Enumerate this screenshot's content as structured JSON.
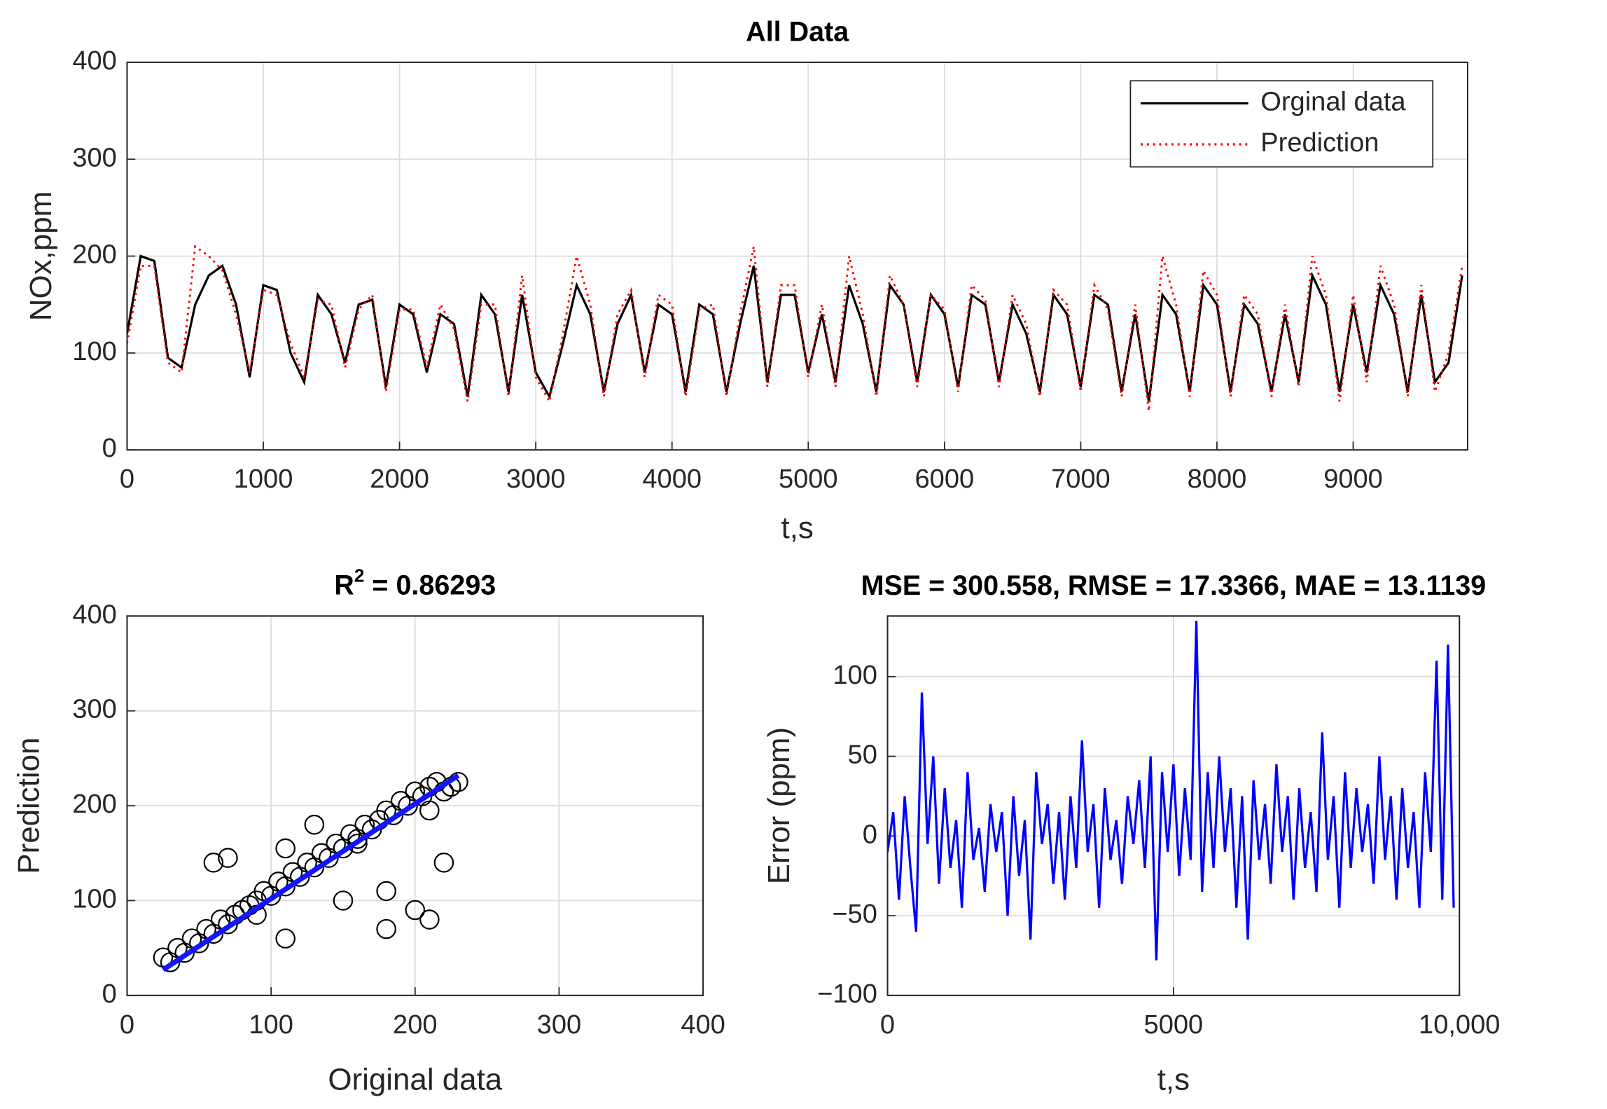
{
  "chart_data": [
    {
      "type": "line",
      "title": "All Data",
      "xlabel": "t,s",
      "ylabel": "NOx,ppm",
      "xlim": [
        0,
        9840
      ],
      "ylim": [
        0,
        400
      ],
      "xticks": [
        0,
        1000,
        2000,
        3000,
        4000,
        5000,
        6000,
        7000,
        8000,
        9000
      ],
      "yticks": [
        0,
        100,
        200,
        300,
        400
      ],
      "grid": true,
      "legend": "northeast",
      "x": [
        0,
        100,
        200,
        300,
        400,
        500,
        600,
        700,
        800,
        900,
        1000,
        1100,
        1200,
        1300,
        1400,
        1500,
        1600,
        1700,
        1800,
        1900,
        2000,
        2100,
        2200,
        2300,
        2400,
        2500,
        2600,
        2700,
        2800,
        2900,
        3000,
        3100,
        3200,
        3300,
        3400,
        3500,
        3600,
        3700,
        3800,
        3900,
        4000,
        4100,
        4200,
        4300,
        4400,
        4500,
        4600,
        4700,
        4800,
        4900,
        5000,
        5100,
        5200,
        5300,
        5400,
        5500,
        5600,
        5700,
        5800,
        5900,
        6000,
        6100,
        6200,
        6300,
        6400,
        6500,
        6600,
        6700,
        6800,
        6900,
        7000,
        7100,
        7200,
        7300,
        7400,
        7500,
        7600,
        7700,
        7800,
        7900,
        8000,
        8100,
        8200,
        8300,
        8400,
        8500,
        8600,
        8700,
        8800,
        8900,
        9000,
        9100,
        9200,
        9300,
        9400,
        9500,
        9600,
        9700,
        9800
      ],
      "series": [
        {
          "name": "Orginal data",
          "color": "#000000",
          "style": "solid",
          "values": [
            120,
            200,
            195,
            95,
            85,
            150,
            180,
            190,
            150,
            75,
            170,
            165,
            100,
            70,
            160,
            140,
            90,
            150,
            155,
            65,
            150,
            140,
            80,
            140,
            130,
            55,
            160,
            140,
            60,
            160,
            80,
            55,
            110,
            170,
            140,
            60,
            130,
            160,
            80,
            150,
            140,
            60,
            150,
            140,
            60,
            130,
            190,
            70,
            160,
            160,
            80,
            140,
            70,
            170,
            130,
            60,
            170,
            150,
            70,
            160,
            140,
            65,
            160,
            150,
            70,
            150,
            120,
            60,
            160,
            140,
            65,
            160,
            150,
            60,
            140,
            50,
            160,
            140,
            60,
            170,
            150,
            60,
            150,
            130,
            60,
            140,
            70,
            180,
            150,
            60,
            150,
            80,
            170,
            140,
            60,
            160,
            70,
            90,
            180
          ]
        },
        {
          "name": "Prediction",
          "color": "#ff0000",
          "style": "dotted",
          "values": [
            110,
            190,
            190,
            90,
            80,
            210,
            200,
            185,
            140,
            80,
            165,
            160,
            110,
            75,
            155,
            150,
            85,
            145,
            160,
            60,
            145,
            145,
            85,
            150,
            125,
            50,
            150,
            150,
            55,
            180,
            75,
            50,
            120,
            200,
            150,
            55,
            140,
            165,
            75,
            160,
            150,
            55,
            145,
            150,
            55,
            140,
            210,
            65,
            170,
            170,
            75,
            150,
            65,
            200,
            140,
            55,
            180,
            150,
            65,
            160,
            145,
            60,
            170,
            155,
            65,
            160,
            130,
            55,
            165,
            150,
            60,
            170,
            145,
            55,
            150,
            40,
            200,
            150,
            55,
            185,
            160,
            55,
            160,
            140,
            55,
            150,
            65,
            200,
            160,
            50,
            160,
            70,
            190,
            150,
            55,
            170,
            60,
            100,
            190
          ]
        }
      ]
    },
    {
      "type": "scatter",
      "title_parts": [
        "R",
        "2",
        " = 0.86293"
      ],
      "xlabel": "Original data",
      "ylabel": "Prediction",
      "xlim": [
        0,
        400
      ],
      "ylim": [
        0,
        400
      ],
      "xticks": [
        0,
        100,
        200,
        300,
        400
      ],
      "yticks": [
        0,
        100,
        200,
        300,
        400
      ],
      "grid": true,
      "series": [
        {
          "color": "#000000",
          "style": "markers",
          "x": [
            25,
            30,
            35,
            40,
            45,
            50,
            55,
            60,
            65,
            70,
            75,
            80,
            85,
            90,
            95,
            100,
            105,
            110,
            115,
            120,
            125,
            130,
            135,
            140,
            145,
            150,
            155,
            160,
            165,
            170,
            175,
            180,
            185,
            190,
            195,
            200,
            205,
            210,
            215,
            220,
            225,
            230,
            60,
            70,
            110,
            130,
            160,
            180,
            200,
            210,
            220,
            180,
            210,
            110,
            90,
            150
          ],
          "values": [
            40,
            35,
            50,
            45,
            60,
            55,
            70,
            65,
            80,
            75,
            85,
            90,
            95,
            100,
            110,
            105,
            120,
            115,
            130,
            125,
            140,
            135,
            150,
            145,
            160,
            155,
            170,
            165,
            180,
            175,
            185,
            195,
            190,
            205,
            200,
            215,
            210,
            220,
            225,
            215,
            220,
            225,
            140,
            145,
            155,
            180,
            160,
            110,
            90,
            80,
            140,
            70,
            195,
            60,
            85,
            100
          ]
        },
        {
          "color": "#1414ff",
          "style": "solid",
          "x": [
            25,
            230
          ],
          "values": [
            27,
            232
          ]
        }
      ]
    },
    {
      "type": "line",
      "title": "MSE = 300.558, RMSE = 17.3366, MAE = 13.1139",
      "xlabel": "t,s",
      "ylabel": "Error (ppm)",
      "xlim": [
        0,
        10000
      ],
      "ylim": [
        -100,
        138
      ],
      "xticks": [
        0,
        5000,
        {
          "value": 10000,
          "label": "10,000"
        }
      ],
      "yticks": [
        {
          "value": -100,
          "label": "−100"
        },
        {
          "value": -50,
          "label": "−50"
        },
        0,
        50,
        100
      ],
      "grid": true,
      "x": [
        0,
        100,
        200,
        300,
        400,
        500,
        600,
        700,
        800,
        900,
        1000,
        1100,
        1200,
        1300,
        1400,
        1500,
        1600,
        1700,
        1800,
        1900,
        2000,
        2100,
        2200,
        2300,
        2400,
        2500,
        2600,
        2700,
        2800,
        2900,
        3000,
        3100,
        3200,
        3300,
        3400,
        3500,
        3600,
        3700,
        3800,
        3900,
        4000,
        4100,
        4200,
        4300,
        4400,
        4500,
        4600,
        4700,
        4800,
        4900,
        5000,
        5100,
        5200,
        5300,
        5400,
        5500,
        5600,
        5700,
        5800,
        5900,
        6000,
        6100,
        6200,
        6300,
        6400,
        6500,
        6600,
        6700,
        6800,
        6900,
        7000,
        7100,
        7200,
        7300,
        7400,
        7500,
        7600,
        7700,
        7800,
        7900,
        8000,
        8100,
        8200,
        8300,
        8400,
        8500,
        8600,
        8700,
        8800,
        8900,
        9000,
        9100,
        9200,
        9300,
        9400,
        9500,
        9600,
        9700,
        9800,
        9900
      ],
      "series": [
        {
          "color": "#0000ff",
          "style": "solid",
          "values": [
            -10,
            15,
            -40,
            25,
            -20,
            -60,
            90,
            -5,
            50,
            -30,
            30,
            -20,
            10,
            -45,
            40,
            -15,
            5,
            -35,
            20,
            -10,
            15,
            -50,
            25,
            -25,
            10,
            -65,
            40,
            -5,
            20,
            -30,
            15,
            -40,
            25,
            -20,
            60,
            -10,
            20,
            -45,
            30,
            -15,
            10,
            -30,
            25,
            -5,
            35,
            -20,
            50,
            -78,
            40,
            -10,
            45,
            -25,
            30,
            -15,
            135,
            -35,
            40,
            -20,
            50,
            -10,
            30,
            -45,
            25,
            -65,
            35,
            -15,
            20,
            -30,
            45,
            -10,
            25,
            -40,
            30,
            -20,
            15,
            -35,
            65,
            -15,
            25,
            -45,
            40,
            -20,
            30,
            -10,
            20,
            -30,
            50,
            -15,
            25,
            -40,
            30,
            -20,
            15,
            -45,
            40,
            -10,
            110,
            -40,
            120,
            -45
          ]
        }
      ]
    }
  ]
}
